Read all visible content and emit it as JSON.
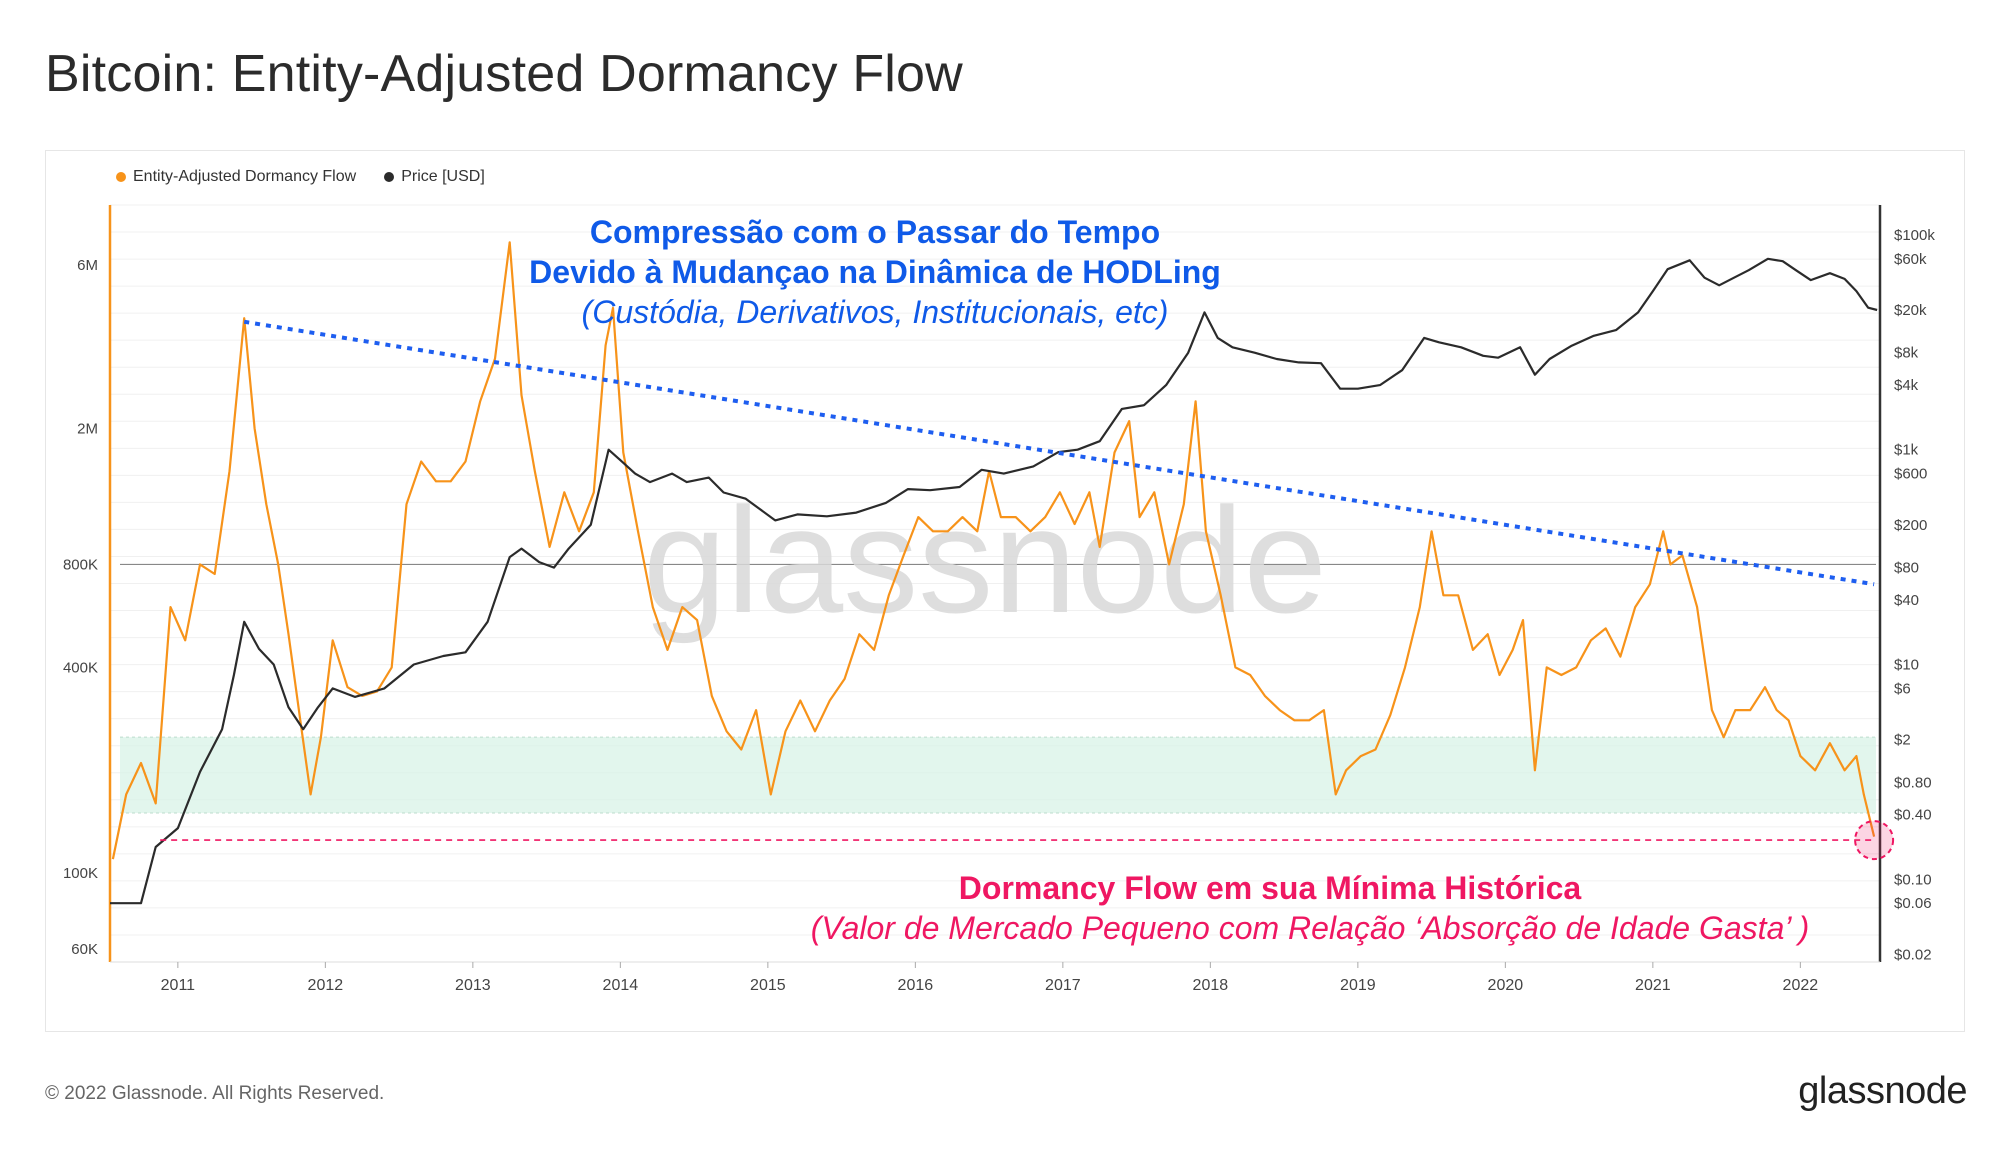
{
  "header": {
    "title": "Bitcoin: Entity-Adjusted Dormancy Flow"
  },
  "footer": {
    "copyright": "© 2022 Glassnode. All Rights Reserved.",
    "logo_text": "glassnode"
  },
  "watermark": "glassnode",
  "colors": {
    "dormancy": "#f7931a",
    "price": "#2b2b2b",
    "trend": "#1e5ef0",
    "ath_low": "#ef1762",
    "band": "#d6f2e6"
  },
  "annotations": {
    "compression": {
      "line1": "Compressão com o Passar do Tempo",
      "line2": "Devido à Mudançao na Dinâmica de HODLing",
      "line3": "(Custódia, Derivativos, Institucionais, etc)"
    },
    "low": {
      "line1": "Dormancy Flow em sua Mínima Histórica",
      "line2": "(Valor de Mercado Pequeno com Relação ‘Absorção de Idade Gasta’ )"
    }
  },
  "chart_data": {
    "type": "line",
    "title": "Bitcoin: Entity-Adjusted Dormancy Flow",
    "legend": [
      "Entity-Adjusted Dormancy Flow",
      "Price [USD]"
    ],
    "legend_position": "top-left",
    "x_ticks": [
      "2011",
      "2012",
      "2013",
      "2014",
      "2015",
      "2016",
      "2017",
      "2018",
      "2019",
      "2020",
      "2021",
      "2022"
    ],
    "x_range": [
      2010.54,
      2022.54
    ],
    "y_left": {
      "scale": "log",
      "ticks": [
        "6M",
        "2M",
        "800K",
        "400K",
        "100K",
        "60K"
      ],
      "tick_values": [
        6000000,
        2000000,
        800000,
        400000,
        100000,
        60000
      ],
      "range": [
        55000,
        9000000
      ]
    },
    "y_right": {
      "scale": "log",
      "ticks": [
        "$100k",
        "$60k",
        "$20k",
        "$8k",
        "$4k",
        "$1k",
        "$600",
        "$200",
        "$80",
        "$40",
        "$10",
        "$6",
        "$2",
        "$0.80",
        "$0.40",
        "$0.10",
        "$0.06",
        "$0.02"
      ],
      "tick_values": [
        100000,
        60000,
        20000,
        8000,
        4000,
        1000,
        600,
        200,
        80,
        40,
        10,
        6,
        2,
        0.8,
        0.4,
        0.1,
        0.06,
        0.02
      ],
      "range": [
        0.017,
        190000
      ]
    },
    "band": {
      "axis": "left",
      "from": 150000,
      "to": 250000
    },
    "reference_line": {
      "axis": "left",
      "value": 800000
    },
    "ath_low_line": {
      "axis": "left",
      "value": 125000
    },
    "trend_line": {
      "axis": "left",
      "from": [
        2011.45,
        4100000
      ],
      "to": [
        2022.5,
        700000
      ]
    },
    "series": [
      {
        "name": "Entity-Adjusted Dormancy Flow",
        "axis": "left",
        "points": [
          [
            2010.56,
            110000
          ],
          [
            2010.65,
            170000
          ],
          [
            2010.75,
            210000
          ],
          [
            2010.85,
            160000
          ],
          [
            2010.95,
            600000
          ],
          [
            2011.05,
            480000
          ],
          [
            2011.15,
            800000
          ],
          [
            2011.25,
            750000
          ],
          [
            2011.35,
            1500000
          ],
          [
            2011.45,
            4200000
          ],
          [
            2011.52,
            2000000
          ],
          [
            2011.6,
            1200000
          ],
          [
            2011.68,
            800000
          ],
          [
            2011.75,
            500000
          ],
          [
            2011.83,
            280000
          ],
          [
            2011.9,
            170000
          ],
          [
            2011.97,
            250000
          ],
          [
            2012.05,
            480000
          ],
          [
            2012.15,
            350000
          ],
          [
            2012.25,
            330000
          ],
          [
            2012.35,
            340000
          ],
          [
            2012.45,
            400000
          ],
          [
            2012.55,
            1200000
          ],
          [
            2012.65,
            1600000
          ],
          [
            2012.75,
            1400000
          ],
          [
            2012.85,
            1400000
          ],
          [
            2012.95,
            1600000
          ],
          [
            2013.05,
            2400000
          ],
          [
            2013.15,
            3200000
          ],
          [
            2013.25,
            7000000
          ],
          [
            2013.33,
            2500000
          ],
          [
            2013.42,
            1500000
          ],
          [
            2013.52,
            900000
          ],
          [
            2013.62,
            1300000
          ],
          [
            2013.72,
            1000000
          ],
          [
            2013.82,
            1300000
          ],
          [
            2013.9,
            3500000
          ],
          [
            2013.95,
            4500000
          ],
          [
            2014.02,
            1700000
          ],
          [
            2014.12,
            1000000
          ],
          [
            2014.22,
            600000
          ],
          [
            2014.32,
            450000
          ],
          [
            2014.42,
            600000
          ],
          [
            2014.52,
            550000
          ],
          [
            2014.62,
            330000
          ],
          [
            2014.72,
            260000
          ],
          [
            2014.82,
            230000
          ],
          [
            2014.92,
            300000
          ],
          [
            2015.02,
            170000
          ],
          [
            2015.12,
            260000
          ],
          [
            2015.22,
            320000
          ],
          [
            2015.32,
            260000
          ],
          [
            2015.42,
            320000
          ],
          [
            2015.52,
            370000
          ],
          [
            2015.62,
            500000
          ],
          [
            2015.72,
            450000
          ],
          [
            2015.82,
            650000
          ],
          [
            2015.92,
            850000
          ],
          [
            2016.02,
            1100000
          ],
          [
            2016.12,
            1000000
          ],
          [
            2016.22,
            1000000
          ],
          [
            2016.32,
            1100000
          ],
          [
            2016.42,
            1000000
          ],
          [
            2016.5,
            1500000
          ],
          [
            2016.58,
            1100000
          ],
          [
            2016.68,
            1100000
          ],
          [
            2016.78,
            1000000
          ],
          [
            2016.88,
            1100000
          ],
          [
            2016.98,
            1300000
          ],
          [
            2017.08,
            1050000
          ],
          [
            2017.18,
            1300000
          ],
          [
            2017.25,
            900000
          ],
          [
            2017.35,
            1700000
          ],
          [
            2017.45,
            2100000
          ],
          [
            2017.52,
            1100000
          ],
          [
            2017.62,
            1300000
          ],
          [
            2017.72,
            800000
          ],
          [
            2017.82,
            1200000
          ],
          [
            2017.9,
            2400000
          ],
          [
            2017.97,
            1000000
          ],
          [
            2018.07,
            650000
          ],
          [
            2018.17,
            400000
          ],
          [
            2018.27,
            380000
          ],
          [
            2018.37,
            330000
          ],
          [
            2018.47,
            300000
          ],
          [
            2018.57,
            280000
          ],
          [
            2018.67,
            280000
          ],
          [
            2018.77,
            300000
          ],
          [
            2018.85,
            170000
          ],
          [
            2018.92,
            200000
          ],
          [
            2019.02,
            220000
          ],
          [
            2019.12,
            230000
          ],
          [
            2019.22,
            290000
          ],
          [
            2019.32,
            400000
          ],
          [
            2019.42,
            600000
          ],
          [
            2019.5,
            1000000
          ],
          [
            2019.58,
            650000
          ],
          [
            2019.68,
            650000
          ],
          [
            2019.78,
            450000
          ],
          [
            2019.88,
            500000
          ],
          [
            2019.96,
            380000
          ],
          [
            2020.05,
            450000
          ],
          [
            2020.12,
            550000
          ],
          [
            2020.2,
            200000
          ],
          [
            2020.28,
            400000
          ],
          [
            2020.38,
            380000
          ],
          [
            2020.48,
            400000
          ],
          [
            2020.58,
            480000
          ],
          [
            2020.68,
            520000
          ],
          [
            2020.78,
            430000
          ],
          [
            2020.88,
            600000
          ],
          [
            2020.98,
            700000
          ],
          [
            2021.07,
            1000000
          ],
          [
            2021.12,
            800000
          ],
          [
            2021.2,
            850000
          ],
          [
            2021.3,
            600000
          ],
          [
            2021.4,
            300000
          ],
          [
            2021.48,
            250000
          ],
          [
            2021.56,
            300000
          ],
          [
            2021.66,
            300000
          ],
          [
            2021.76,
            350000
          ],
          [
            2021.84,
            300000
          ],
          [
            2021.92,
            280000
          ],
          [
            2022.0,
            220000
          ],
          [
            2022.1,
            200000
          ],
          [
            2022.2,
            240000
          ],
          [
            2022.3,
            200000
          ],
          [
            2022.38,
            220000
          ],
          [
            2022.43,
            170000
          ],
          [
            2022.5,
            128000
          ]
        ]
      },
      {
        "name": "Price [USD]",
        "axis": "right",
        "points": [
          [
            2010.54,
            0.06
          ],
          [
            2010.65,
            0.06
          ],
          [
            2010.75,
            0.06
          ],
          [
            2010.85,
            0.2
          ],
          [
            2011.0,
            0.3
          ],
          [
            2011.15,
            1.0
          ],
          [
            2011.3,
            2.5
          ],
          [
            2011.38,
            8
          ],
          [
            2011.45,
            25
          ],
          [
            2011.55,
            14
          ],
          [
            2011.65,
            10
          ],
          [
            2011.75,
            4
          ],
          [
            2011.85,
            2.5
          ],
          [
            2011.95,
            4
          ],
          [
            2012.05,
            6
          ],
          [
            2012.2,
            5
          ],
          [
            2012.4,
            6
          ],
          [
            2012.6,
            10
          ],
          [
            2012.8,
            12
          ],
          [
            2012.95,
            13
          ],
          [
            2013.1,
            25
          ],
          [
            2013.25,
            100
          ],
          [
            2013.33,
            120
          ],
          [
            2013.45,
            90
          ],
          [
            2013.55,
            80
          ],
          [
            2013.65,
            120
          ],
          [
            2013.8,
            200
          ],
          [
            2013.92,
            1000
          ],
          [
            2014.0,
            800
          ],
          [
            2014.1,
            600
          ],
          [
            2014.2,
            500
          ],
          [
            2014.35,
            600
          ],
          [
            2014.45,
            500
          ],
          [
            2014.6,
            550
          ],
          [
            2014.7,
            400
          ],
          [
            2014.85,
            350
          ],
          [
            2015.05,
            220
          ],
          [
            2015.2,
            250
          ],
          [
            2015.4,
            240
          ],
          [
            2015.6,
            260
          ],
          [
            2015.8,
            320
          ],
          [
            2015.95,
            430
          ],
          [
            2016.1,
            420
          ],
          [
            2016.3,
            450
          ],
          [
            2016.45,
            650
          ],
          [
            2016.6,
            600
          ],
          [
            2016.8,
            700
          ],
          [
            2016.97,
            950
          ],
          [
            2017.1,
            1000
          ],
          [
            2017.25,
            1200
          ],
          [
            2017.4,
            2400
          ],
          [
            2017.55,
            2600
          ],
          [
            2017.7,
            4000
          ],
          [
            2017.85,
            8000
          ],
          [
            2017.96,
            19000
          ],
          [
            2018.05,
            11000
          ],
          [
            2018.15,
            9000
          ],
          [
            2018.3,
            8000
          ],
          [
            2018.45,
            7000
          ],
          [
            2018.6,
            6500
          ],
          [
            2018.75,
            6400
          ],
          [
            2018.88,
            3700
          ],
          [
            2019.0,
            3700
          ],
          [
            2019.15,
            4000
          ],
          [
            2019.3,
            5500
          ],
          [
            2019.45,
            11000
          ],
          [
            2019.55,
            10000
          ],
          [
            2019.7,
            9000
          ],
          [
            2019.85,
            7500
          ],
          [
            2019.95,
            7200
          ],
          [
            2020.1,
            9000
          ],
          [
            2020.2,
            5000
          ],
          [
            2020.3,
            7000
          ],
          [
            2020.45,
            9300
          ],
          [
            2020.6,
            11500
          ],
          [
            2020.75,
            13000
          ],
          [
            2020.9,
            19000
          ],
          [
            2021.0,
            30000
          ],
          [
            2021.1,
            48000
          ],
          [
            2021.25,
            58000
          ],
          [
            2021.35,
            40000
          ],
          [
            2021.45,
            34000
          ],
          [
            2021.55,
            40000
          ],
          [
            2021.65,
            47000
          ],
          [
            2021.78,
            60000
          ],
          [
            2021.88,
            57000
          ],
          [
            2021.97,
            47000
          ],
          [
            2022.07,
            38000
          ],
          [
            2022.2,
            44000
          ],
          [
            2022.3,
            39000
          ],
          [
            2022.38,
            30000
          ],
          [
            2022.46,
            21000
          ],
          [
            2022.52,
            20000
          ]
        ]
      }
    ]
  }
}
